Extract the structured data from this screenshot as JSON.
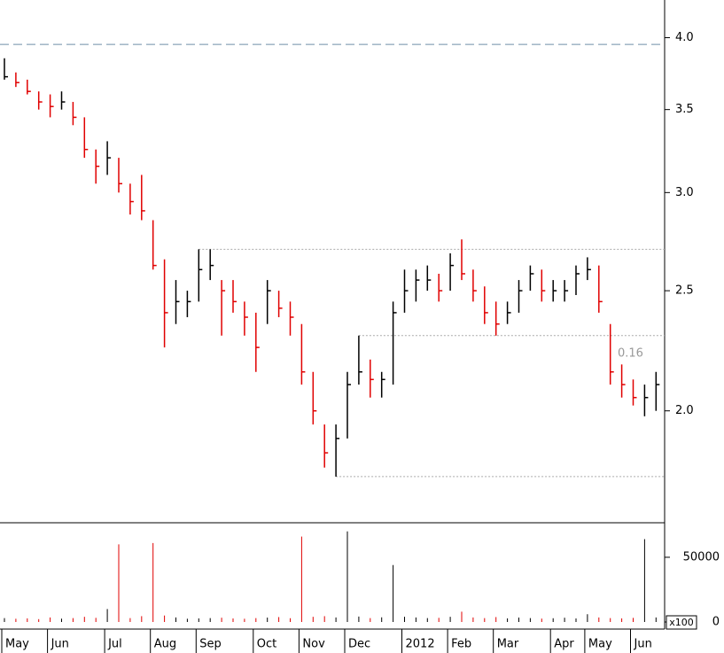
{
  "chart_data": {
    "type": "ohlc",
    "categories": [
      "May",
      null,
      null,
      null,
      "Jun",
      null,
      null,
      null,
      null,
      "Jul",
      null,
      null,
      null,
      "Aug",
      null,
      null,
      null,
      "Sep",
      null,
      null,
      null,
      null,
      "Oct",
      null,
      null,
      null,
      "Nov",
      null,
      null,
      null,
      "Dec",
      null,
      null,
      null,
      null,
      "2012",
      null,
      null,
      null,
      "Feb",
      null,
      null,
      null,
      "Mar",
      null,
      null,
      null,
      null,
      "Apr",
      null,
      null,
      "May",
      null,
      null,
      null,
      "Jun",
      null,
      null
    ],
    "high": [
      3.85,
      3.75,
      3.7,
      3.62,
      3.6,
      3.62,
      3.55,
      3.45,
      3.25,
      3.3,
      3.2,
      3.05,
      3.1,
      2.85,
      2.65,
      2.55,
      2.5,
      2.7,
      2.7,
      2.55,
      2.55,
      2.45,
      2.4,
      2.55,
      2.5,
      2.45,
      2.35,
      2.15,
      1.95,
      1.95,
      2.15,
      2.3,
      2.2,
      2.15,
      2.45,
      2.6,
      2.6,
      2.62,
      2.58,
      2.68,
      2.75,
      2.6,
      2.52,
      2.45,
      2.45,
      2.55,
      2.62,
      2.6,
      2.55,
      2.55,
      2.62,
      2.66,
      2.62,
      2.35,
      2.18,
      2.12,
      2.1,
      2.15
    ],
    "low": [
      3.7,
      3.65,
      3.6,
      3.5,
      3.45,
      3.5,
      3.4,
      3.2,
      3.05,
      3.1,
      3.0,
      2.88,
      2.85,
      2.6,
      2.25,
      2.35,
      2.38,
      2.45,
      2.55,
      2.3,
      2.4,
      2.3,
      2.15,
      2.35,
      2.38,
      2.3,
      2.1,
      1.95,
      1.8,
      1.77,
      1.9,
      2.1,
      2.05,
      2.05,
      2.1,
      2.4,
      2.45,
      2.5,
      2.45,
      2.5,
      2.55,
      2.45,
      2.35,
      2.3,
      2.35,
      2.4,
      2.5,
      2.45,
      2.45,
      2.45,
      2.48,
      2.55,
      2.4,
      2.1,
      2.05,
      2.02,
      1.98,
      2.0
    ],
    "close": [
      3.72,
      3.68,
      3.62,
      3.55,
      3.52,
      3.55,
      3.45,
      3.25,
      3.15,
      3.2,
      3.05,
      2.95,
      2.9,
      2.62,
      2.4,
      2.45,
      2.45,
      2.6,
      2.62,
      2.5,
      2.45,
      2.38,
      2.25,
      2.5,
      2.42,
      2.38,
      2.15,
      2.0,
      1.85,
      1.9,
      2.1,
      2.15,
      2.12,
      2.12,
      2.4,
      2.5,
      2.55,
      2.55,
      2.5,
      2.62,
      2.58,
      2.5,
      2.4,
      2.35,
      2.4,
      2.5,
      2.58,
      2.5,
      2.5,
      2.5,
      2.58,
      2.6,
      2.45,
      2.15,
      2.1,
      2.05,
      2.05,
      2.1
    ],
    "volume": [
      3000,
      2500,
      2800,
      2200,
      3500,
      2600,
      3000,
      4000,
      3200,
      10000,
      60000,
      3000,
      4500,
      61000,
      5000,
      3500,
      2500,
      2800,
      3000,
      3300,
      2700,
      2500,
      3000,
      3400,
      3800,
      2900,
      66000,
      4000,
      4500,
      3500,
      70000,
      4200,
      3000,
      3600,
      44000,
      4000,
      3500,
      3000,
      3200,
      4000,
      8000,
      3500,
      3000,
      3800,
      2800,
      3400,
      3000,
      2600,
      2900,
      3300,
      2700,
      6000,
      3500,
      3000,
      2800,
      3200,
      64000,
      3500
    ],
    "up_color": "#000000",
    "down_color": "#e00000",
    "log_scale": true,
    "ylim": [
      1.63,
      4.29
    ],
    "yticks": [
      {
        "value": 2,
        "label": "2.0"
      },
      2.5,
      {
        "value": 3,
        "label": "3.0"
      },
      3.5,
      {
        "value": 4,
        "label": "4.0"
      }
    ],
    "volume_ylim": [
      0,
      75300
    ],
    "volume_yticks": [
      0,
      50000
    ],
    "volume_unit": "x100",
    "hlines": [
      {
        "value": 3.95,
        "style": "dashed",
        "color": "#6f8fa8"
      },
      {
        "value": 2.7,
        "style": "dotted",
        "color": "#aaaaaa"
      },
      {
        "value": 2.3,
        "style": "dotted",
        "color": "#aaaaaa"
      },
      {
        "value": 1.77,
        "style": "dotted",
        "color": "#aaaaaa"
      }
    ],
    "annotation": "0.16"
  }
}
